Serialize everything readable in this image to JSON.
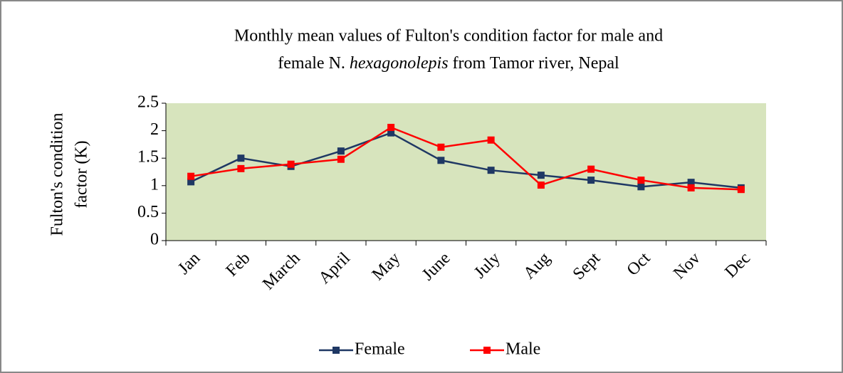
{
  "chart_data": {
    "type": "line",
    "title": [
      "Monthly mean values of Fulton's condition factor for male and",
      "female N.",
      "hexagonolepis",
      "from Tamor river, Nepal"
    ],
    "y_label": [
      "Fulton's condition",
      "factor (K)"
    ],
    "categories": [
      "Jan",
      "Feb",
      "March",
      "April",
      "May",
      "June",
      "July",
      "Aug",
      "Sept",
      "Oct",
      "Nov",
      "Dec"
    ],
    "series": [
      {
        "name": "Female",
        "color": "#1f3864",
        "values": [
          1.07,
          1.5,
          1.35,
          1.63,
          1.96,
          1.46,
          1.28,
          1.19,
          1.1,
          0.98,
          1.06,
          0.96
        ]
      },
      {
        "name": "Male",
        "color": "#ff0000",
        "values": [
          1.17,
          1.31,
          1.39,
          1.48,
          2.06,
          1.7,
          1.83,
          1.01,
          1.3,
          1.1,
          0.96,
          0.93
        ]
      }
    ],
    "ylim": [
      0,
      2.5
    ],
    "yticks": [
      0,
      0.5,
      1,
      1.5,
      2,
      2.5
    ],
    "plot_background": "#d7e4bd",
    "legend": "bottom"
  }
}
